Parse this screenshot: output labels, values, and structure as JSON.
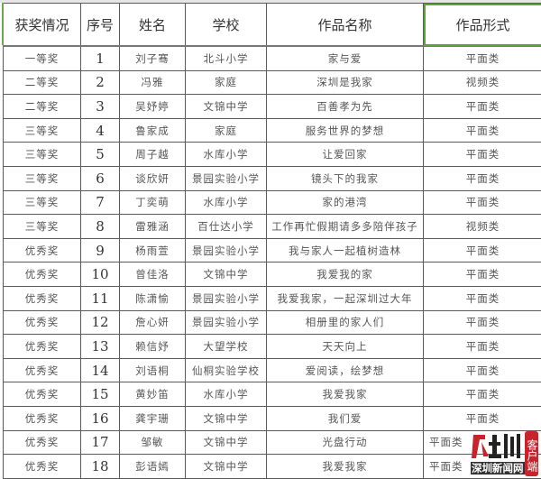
{
  "headers": [
    "获奖情况",
    "序号",
    "姓名",
    "学校",
    "作品名称",
    "作品形式"
  ],
  "rows": [
    [
      "一等奖",
      "1",
      "刘子骞",
      "北斗小学",
      "家与爱",
      "平面类"
    ],
    [
      "二等奖",
      "2",
      "冯雅",
      "家庭",
      "深圳是我家",
      "视频类"
    ],
    [
      "二等奖",
      "3",
      "吴妤婷",
      "文锦中学",
      "百善孝为先",
      "平面类"
    ],
    [
      "三等奖",
      "4",
      "鲁家成",
      "家庭",
      "服务世界的梦想",
      "平面类"
    ],
    [
      "三等奖",
      "5",
      "周子越",
      "水库小学",
      "让爱回家",
      "平面类"
    ],
    [
      "三等奖",
      "6",
      "谈欣妍",
      "景园实验小学",
      "镜头下的我家",
      "平面类"
    ],
    [
      "三等奖",
      "7",
      "丁奕萌",
      "水库小学",
      "家的港湾",
      "平面类"
    ],
    [
      "三等奖",
      "8",
      "雷雅涵",
      "百仕达小学",
      "工作再忙假期请多多陪伴孩子",
      "视频类"
    ],
    [
      "优秀奖",
      "9",
      "杨雨萱",
      "景园实验小学",
      "我与家人一起植树造林",
      "平面类"
    ],
    [
      "优秀奖",
      "10",
      "曾佳洛",
      "文锦中学",
      "我爱我的家",
      "平面类"
    ],
    [
      "优秀奖",
      "11",
      "陈潇愉",
      "景园实验小学",
      "我爱我家，一起深圳过大年",
      "平面类"
    ],
    [
      "优秀奖",
      "12",
      "詹心妍",
      "景园实验小学",
      "相册里的家人们",
      "平面类"
    ],
    [
      "优秀奖",
      "13",
      "赖信妤",
      "大望学校",
      "天天向上",
      "平面类"
    ],
    [
      "优秀奖",
      "14",
      "刘语桐",
      "仙桐实验学校",
      "爱阅读，绘梦想",
      "平面类"
    ],
    [
      "优秀奖",
      "15",
      "黄妙笛",
      "水库小学",
      "我爱我家",
      "平面类"
    ],
    [
      "优秀奖",
      "16",
      "龚宇珊",
      "文锦中学",
      "我们爱",
      "平面类"
    ],
    [
      "优秀奖",
      "17",
      "邹敏",
      "文锦中学",
      "光盘行动",
      "平面类"
    ],
    [
      "优秀奖",
      "18",
      "彭语嫣",
      "文锦中学",
      "我爱我家",
      "平面类"
    ]
  ],
  "watermark": {
    "logo": "圳",
    "name": "深圳新闻网",
    "tag": "客户端"
  },
  "colors": {
    "selection": "#5da43a",
    "watermark_red": "#c8232a"
  }
}
